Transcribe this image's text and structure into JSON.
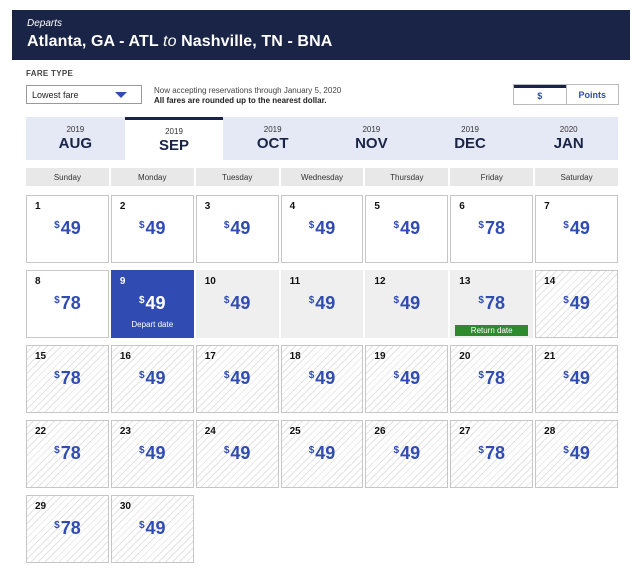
{
  "header": {
    "departs_label": "Departs",
    "origin": "Atlanta, GA - ATL",
    "to_word": "to",
    "destination": "Nashville, TN - BNA"
  },
  "fare_type": {
    "label": "FARE TYPE",
    "selected": "Lowest fare"
  },
  "notice": {
    "line1": "Now accepting reservations through January 5, 2020",
    "line2": "All fares are rounded up to the nearest dollar."
  },
  "currency_toggle": {
    "dollars": "$",
    "points": "Points",
    "selected": "dollars"
  },
  "months": [
    {
      "year": "2019",
      "month": "AUG",
      "active": false
    },
    {
      "year": "2019",
      "month": "SEP",
      "active": true
    },
    {
      "year": "2019",
      "month": "OCT",
      "active": false
    },
    {
      "year": "2019",
      "month": "NOV",
      "active": false
    },
    {
      "year": "2019",
      "month": "DEC",
      "active": false
    },
    {
      "year": "2020",
      "month": "JAN",
      "active": false
    }
  ],
  "weekdays": [
    "Sunday",
    "Monday",
    "Tuesday",
    "Wednesday",
    "Thursday",
    "Friday",
    "Saturday"
  ],
  "currency_symbol": "$",
  "days": [
    {
      "day": "1",
      "price": "49",
      "state": "normal"
    },
    {
      "day": "2",
      "price": "49",
      "state": "normal"
    },
    {
      "day": "3",
      "price": "49",
      "state": "normal"
    },
    {
      "day": "4",
      "price": "49",
      "state": "normal"
    },
    {
      "day": "5",
      "price": "49",
      "state": "normal"
    },
    {
      "day": "6",
      "price": "78",
      "state": "normal"
    },
    {
      "day": "7",
      "price": "49",
      "state": "normal"
    },
    {
      "day": "8",
      "price": "78",
      "state": "normal"
    },
    {
      "day": "9",
      "price": "49",
      "state": "depart",
      "tag": "Depart date"
    },
    {
      "day": "10",
      "price": "49",
      "state": "range"
    },
    {
      "day": "11",
      "price": "49",
      "state": "range"
    },
    {
      "day": "12",
      "price": "49",
      "state": "range"
    },
    {
      "day": "13",
      "price": "78",
      "state": "return",
      "tag": "Return date"
    },
    {
      "day": "14",
      "price": "49",
      "state": "hatch"
    },
    {
      "day": "15",
      "price": "78",
      "state": "hatch"
    },
    {
      "day": "16",
      "price": "49",
      "state": "hatch"
    },
    {
      "day": "17",
      "price": "49",
      "state": "hatch"
    },
    {
      "day": "18",
      "price": "49",
      "state": "hatch"
    },
    {
      "day": "19",
      "price": "49",
      "state": "hatch"
    },
    {
      "day": "20",
      "price": "78",
      "state": "hatch"
    },
    {
      "day": "21",
      "price": "49",
      "state": "hatch"
    },
    {
      "day": "22",
      "price": "78",
      "state": "hatch"
    },
    {
      "day": "23",
      "price": "49",
      "state": "hatch"
    },
    {
      "day": "24",
      "price": "49",
      "state": "hatch"
    },
    {
      "day": "25",
      "price": "49",
      "state": "hatch"
    },
    {
      "day": "26",
      "price": "49",
      "state": "hatch"
    },
    {
      "day": "27",
      "price": "78",
      "state": "hatch"
    },
    {
      "day": "28",
      "price": "49",
      "state": "hatch"
    },
    {
      "day": "29",
      "price": "78",
      "state": "hatch"
    },
    {
      "day": "30",
      "price": "49",
      "state": "hatch"
    }
  ],
  "colors": {
    "header_bg": "#1a2447",
    "accent_blue": "#304cb2",
    "return_green": "#2d8a2d"
  },
  "icons": {
    "fare_dropdown": "chevron-down-icon"
  }
}
